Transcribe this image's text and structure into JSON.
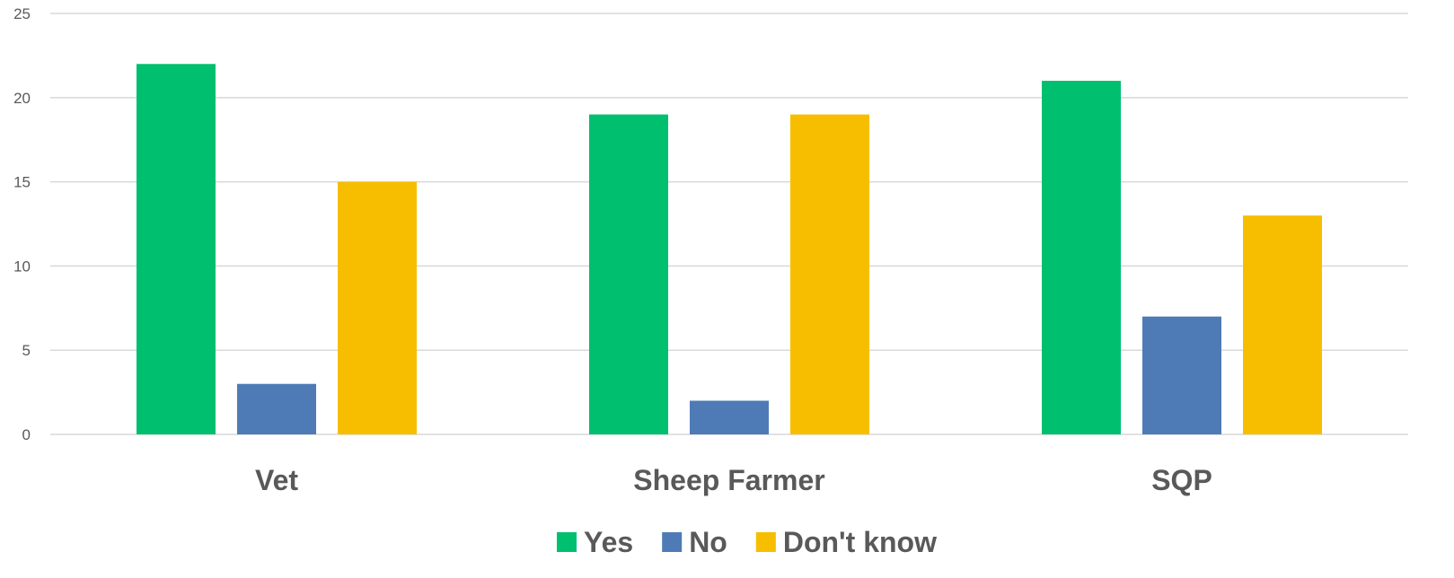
{
  "chart_data": {
    "type": "bar",
    "categories": [
      "Vet",
      "Sheep Farmer",
      "SQP"
    ],
    "series": [
      {
        "name": "Yes",
        "color": "#00bf6f",
        "values": [
          22,
          19,
          21
        ]
      },
      {
        "name": "No",
        "color": "#4e7bb6",
        "values": [
          3,
          2,
          7
        ]
      },
      {
        "name": "Don't know",
        "color": "#f7be00",
        "values": [
          15,
          19,
          13
        ]
      }
    ],
    "ylim": [
      0,
      25
    ],
    "yticks": [
      0,
      5,
      10,
      15,
      20,
      25
    ],
    "grid": true,
    "legend_position": "bottom"
  }
}
